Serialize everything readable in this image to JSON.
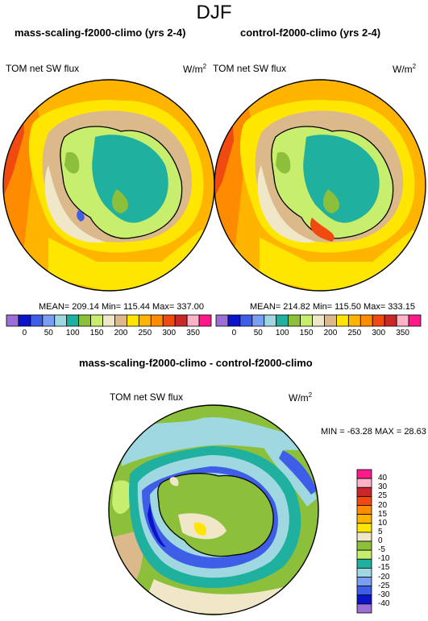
{
  "page_title": "DJF",
  "panels": [
    {
      "title": "mass-scaling-f2000-climo (yrs 2-4)",
      "variable": "TOM net SW flux",
      "units_base": "W/m",
      "units_exp": "2",
      "stats": "MEAN= 209.14  Min= 115.44  Max= 337.00"
    },
    {
      "title": "control-f2000-climo (yrs 2-4)",
      "variable": "TOM net SW flux",
      "units_base": "W/m",
      "units_exp": "2",
      "stats": "MEAN= 214.82  Min= 115.50  Max= 333.15"
    }
  ],
  "top_colorbar": {
    "labels": [
      "0",
      "50",
      "100",
      "150",
      "200",
      "250",
      "300",
      "350"
    ],
    "colors": [
      "#9b6fd6",
      "#0a14c8",
      "#3f5ee8",
      "#7a9ef2",
      "#9fd8e0",
      "#1fb0a0",
      "#8cbf3a",
      "#c8ee6e",
      "#f0e6c8",
      "#dcb98a",
      "#ffe600",
      "#ffb400",
      "#ff8c00",
      "#f04a10",
      "#c82828",
      "#ffb3c6",
      "#ff1a8c"
    ]
  },
  "diff_panel": {
    "title": "mass-scaling-f2000-climo - control-f2000-climo",
    "variable": "TOM net SW flux",
    "units_base": "W/m",
    "units_exp": "2",
    "stats": "MIN = -63.28 MAX =  28.63"
  },
  "diff_colorbar": {
    "labels": [
      "40",
      "30",
      "25",
      "20",
      "15",
      "10",
      "5",
      "0",
      "-5",
      "-10",
      "-15",
      "-20",
      "-25",
      "-30",
      "-40"
    ],
    "colors": [
      "#ff1a8c",
      "#ffb3c6",
      "#c82828",
      "#f04a10",
      "#ff8c00",
      "#ffb400",
      "#ffe600",
      "#f0e6c8",
      "#8cbf3a",
      "#c8ee6e",
      "#1fb0a0",
      "#9fd8e0",
      "#7a9ef2",
      "#3f5ee8",
      "#0a14c8",
      "#9b6fd6"
    ]
  }
}
